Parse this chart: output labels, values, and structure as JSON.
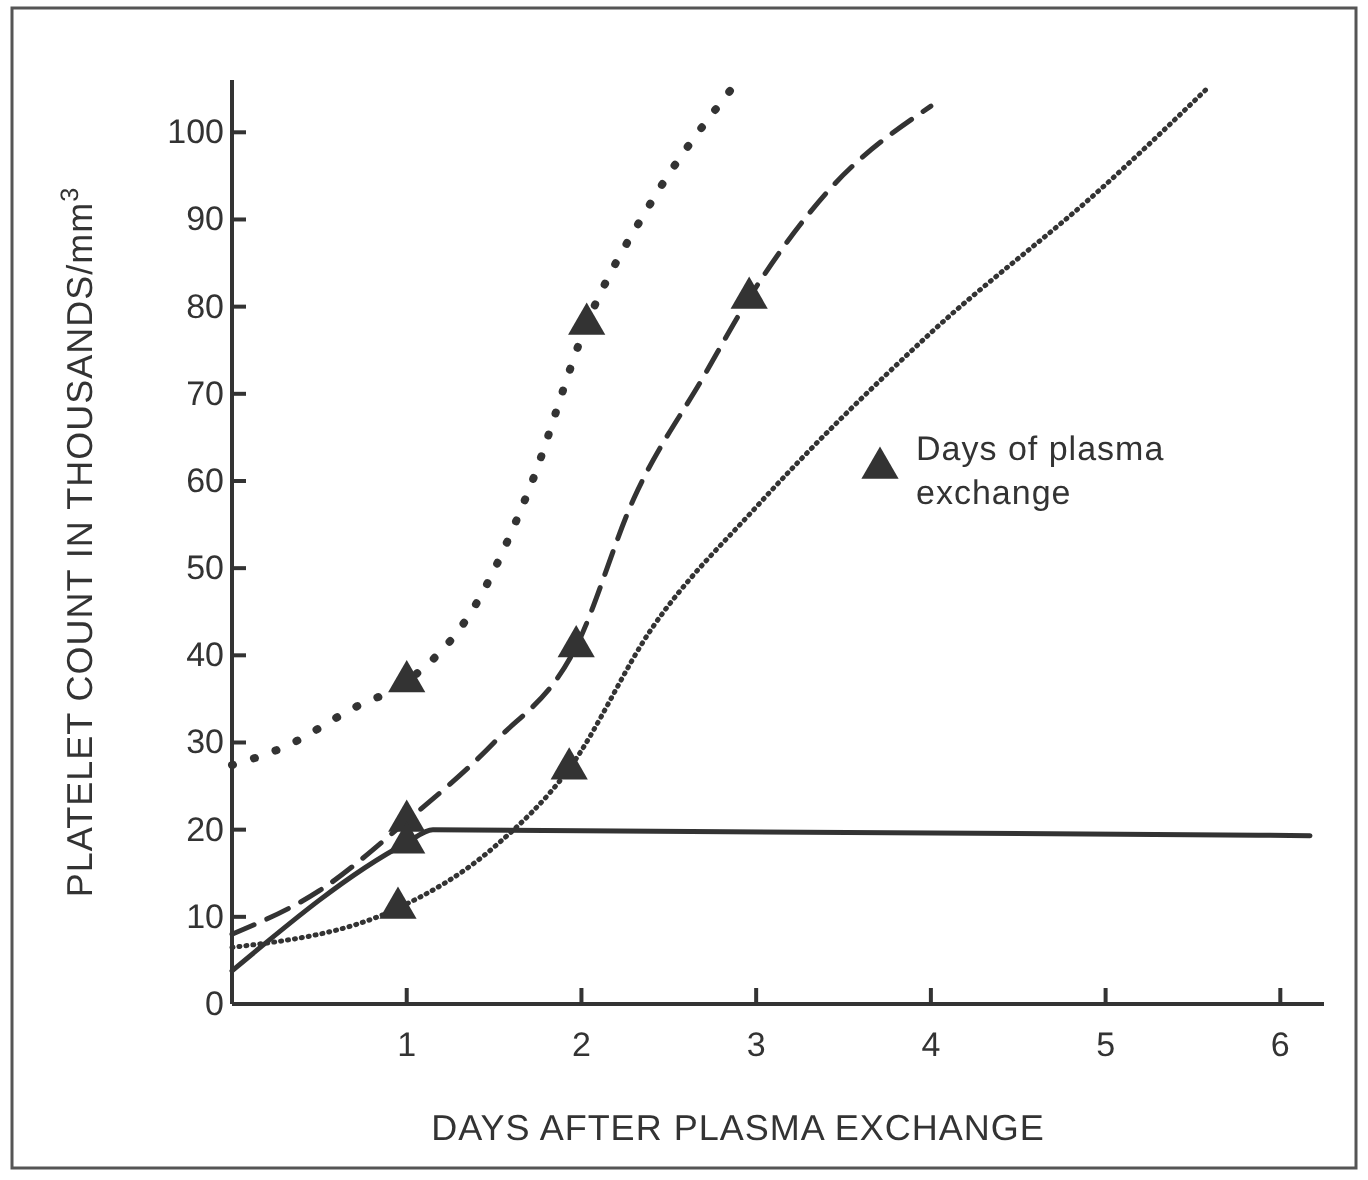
{
  "chart_data": {
    "type": "line",
    "xlabel": "DAYS AFTER PLASMA EXCHANGE",
    "ylabel": "PLATELET COUNT IN THOUSANDS/mm$^{3}$",
    "xlim": [
      0,
      6.25
    ],
    "ylim": [
      0,
      106
    ],
    "xticks": [
      1,
      2,
      3,
      4,
      5,
      6
    ],
    "yticks": [
      0,
      10,
      20,
      30,
      40,
      50,
      60,
      70,
      80,
      90,
      100
    ],
    "grid": false,
    "legend": "right",
    "marker": "none",
    "series": [
      {
        "color": "#333333",
        "line_style": "dotted",
        "x": [
          0,
          0.3,
          0.7,
          1,
          1.4,
          1.7,
          2.03,
          2.4,
          2.86
        ],
        "values": [
          27.4,
          29.5,
          34,
          37,
          46,
          59,
          78,
          92,
          105
        ]
      },
      {
        "color": "#333333",
        "line_style": "dashed",
        "x": [
          0,
          0.5,
          1,
          1.5,
          1.97,
          2.3,
          2.7,
          2.96,
          3.4,
          4
        ],
        "values": [
          8,
          13,
          21,
          30,
          41,
          58,
          72,
          81,
          93,
          103
        ]
      },
      {
        "color": "#333333",
        "line_style": "dotted",
        "x": [
          0,
          0.95,
          1.5,
          1.93,
          2.4,
          3,
          4,
          5,
          5.58
        ],
        "values": [
          6.5,
          11,
          18,
          27,
          43,
          57,
          77,
          94,
          105
        ]
      },
      {
        "color": "#333333",
        "line_style": "solid",
        "x": [
          0,
          1,
          1.15,
          6.17
        ],
        "values": [
          3.8,
          18.5,
          20,
          19.3
        ]
      },
      {
        "type": "scatter",
        "name": "Days of plasma exchange",
        "marker": "triangle",
        "color": "#333333",
        "x": [
          1,
          2.03,
          1,
          1.97,
          2.96,
          0.95,
          1.93,
          1
        ],
        "values": [
          37,
          78,
          21,
          41,
          81,
          11,
          27,
          18.5
        ]
      }
    ]
  }
}
